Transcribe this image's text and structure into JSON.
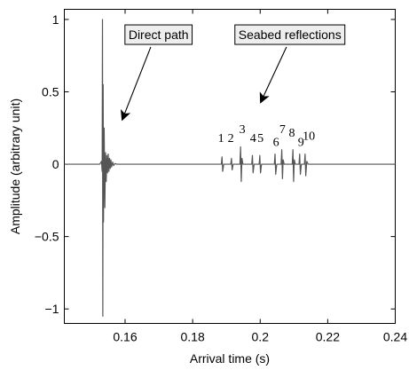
{
  "chart_data": {
    "type": "line",
    "title": "",
    "xlabel": "Arrival time (s)",
    "ylabel": "Amplitude (arbitrary unit)",
    "xlim": [
      0.142,
      0.24
    ],
    "ylim": [
      -1.1,
      1.07
    ],
    "x_ticks": [
      0.16,
      0.18,
      0.2,
      0.22,
      0.24
    ],
    "x_tick_labels": [
      "0.16",
      "0.18",
      "0.2",
      "0.22",
      "0.24"
    ],
    "y_ticks": [
      -1,
      -0.5,
      0,
      0.5,
      1
    ],
    "y_tick_labels": [
      "−1",
      "−0.5",
      "0",
      "0.5",
      "1"
    ],
    "grid": false,
    "series": [
      {
        "color": "#555555",
        "x": [
          0.142,
          0.1525,
          0.153,
          0.1532,
          0.1533,
          0.1534,
          0.1535,
          0.1536,
          0.1538,
          0.154,
          0.1542,
          0.1544,
          0.1546,
          0.1548,
          0.155,
          0.1552,
          0.1554,
          0.1556,
          0.1558,
          0.156,
          0.1563,
          0.1566,
          0.157,
          0.1575,
          0.158,
          0.1885,
          0.1887,
          0.1889,
          0.1892,
          0.1913,
          0.1915,
          0.1917,
          0.192,
          0.194,
          0.1942,
          0.1944,
          0.1946,
          0.1949,
          0.1975,
          0.1977,
          0.1979,
          0.1982,
          0.1997,
          0.1999,
          0.2001,
          0.2004,
          0.2042,
          0.2044,
          0.2046,
          0.2049,
          0.2062,
          0.2064,
          0.2066,
          0.2068,
          0.2071,
          0.2095,
          0.2097,
          0.2099,
          0.2101,
          0.2104,
          0.2115,
          0.2117,
          0.2119,
          0.2122,
          0.2131,
          0.2133,
          0.2135,
          0.2138,
          0.2142,
          0.24
        ],
        "y": [
          0.0,
          0.0,
          0.02,
          -0.05,
          1.0,
          -1.05,
          0.55,
          -0.4,
          0.25,
          -0.3,
          0.08,
          -0.12,
          0.06,
          -0.06,
          0.07,
          -0.05,
          0.04,
          -0.03,
          0.03,
          -0.02,
          0.015,
          -0.01,
          0.005,
          0.0,
          0.0,
          0.0,
          0.05,
          -0.05,
          0.0,
          0.0,
          0.04,
          -0.04,
          0.0,
          0.0,
          0.12,
          -0.12,
          0.04,
          0.0,
          0.0,
          0.06,
          -0.06,
          0.0,
          0.0,
          0.06,
          -0.06,
          0.0,
          0.0,
          0.07,
          -0.07,
          0.0,
          0.0,
          0.1,
          -0.1,
          0.03,
          0.0,
          0.0,
          0.1,
          -0.12,
          0.03,
          0.0,
          0.0,
          0.07,
          -0.07,
          0.0,
          0.0,
          0.07,
          -0.08,
          0.02,
          0.0,
          0.0
        ]
      }
    ],
    "annotations": [
      {
        "text": "Direct path",
        "label_x": 0.1699,
        "label_y": 0.895,
        "arrow_from": [
          0.1676,
          0.81
        ],
        "arrow_to": [
          0.1592,
          0.31
        ]
      },
      {
        "text": "Seabed reflections",
        "label_x": 0.2088,
        "label_y": 0.895,
        "arrow_from": [
          0.2078,
          0.81
        ],
        "arrow_to": [
          0.2002,
          0.43
        ]
      }
    ],
    "pulse_labels": [
      {
        "text": "1",
        "x": 0.1884,
        "y": 0.155
      },
      {
        "text": "2",
        "x": 0.1913,
        "y": 0.155
      },
      {
        "text": "3",
        "x": 0.1947,
        "y": 0.215
      },
      {
        "text": "4",
        "x": 0.1979,
        "y": 0.155
      },
      {
        "text": "5",
        "x": 0.2001,
        "y": 0.155
      },
      {
        "text": "6",
        "x": 0.2047,
        "y": 0.125
      },
      {
        "text": "7",
        "x": 0.2066,
        "y": 0.215
      },
      {
        "text": "8",
        "x": 0.2094,
        "y": 0.19
      },
      {
        "text": "9",
        "x": 0.2121,
        "y": 0.125
      },
      {
        "text": "10",
        "x": 0.2144,
        "y": 0.17
      }
    ]
  }
}
